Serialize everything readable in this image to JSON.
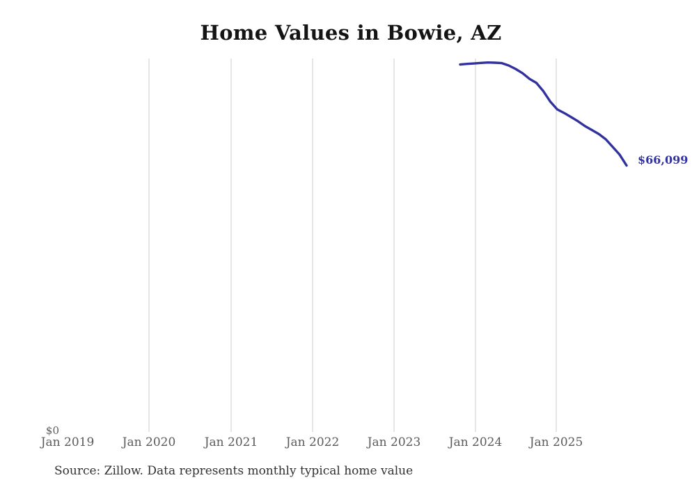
{
  "chart_data": {
    "type": "line",
    "title": "Home Values in Bowie, AZ",
    "xlabel": "",
    "ylabel": "",
    "x_tick_labels": [
      "Jan 2019",
      "Jan 2020",
      "Jan 2021",
      "Jan 2022",
      "Jan 2023",
      "Jan 2024",
      "Jan 2025"
    ],
    "y_tick_labels": [
      "$0"
    ],
    "ylim": [
      0,
      92500
    ],
    "grid": "vertical-only",
    "legend": "none",
    "series": [
      {
        "name": "Monthly typical home value",
        "x": [
          "Nov 2023",
          "Dec 2023",
          "Jan 2024",
          "Feb 2024",
          "Mar 2024",
          "Apr 2024",
          "May 2024",
          "Jun 2024",
          "Jul 2024",
          "Aug 2024",
          "Sep 2024",
          "Oct 2024",
          "Nov 2024",
          "Dec 2024",
          "Jan 2025",
          "Feb 2025",
          "Mar 2025",
          "Apr 2025",
          "May 2025",
          "Jun 2025",
          "Jul 2025",
          "Aug 2025",
          "Sep 2025",
          "Oct 2025",
          "Nov 2025"
        ],
        "values": [
          91100,
          91250,
          91350,
          91500,
          91600,
          91550,
          91450,
          90850,
          90000,
          88950,
          87550,
          86550,
          84500,
          81900,
          80000,
          79100,
          78100,
          77050,
          75850,
          74900,
          73900,
          72600,
          70700,
          68800,
          66099
        ]
      }
    ],
    "last_value": 66099,
    "end_label": "$66,099",
    "source_note": "Source: Zillow. Data represents monthly typical home value",
    "colors": {
      "line": "#32329e",
      "grid": "#cccccc",
      "tick_label": "#5a5a5a",
      "title": "#141414",
      "source": "#303030",
      "background": "#ffffff"
    }
  }
}
